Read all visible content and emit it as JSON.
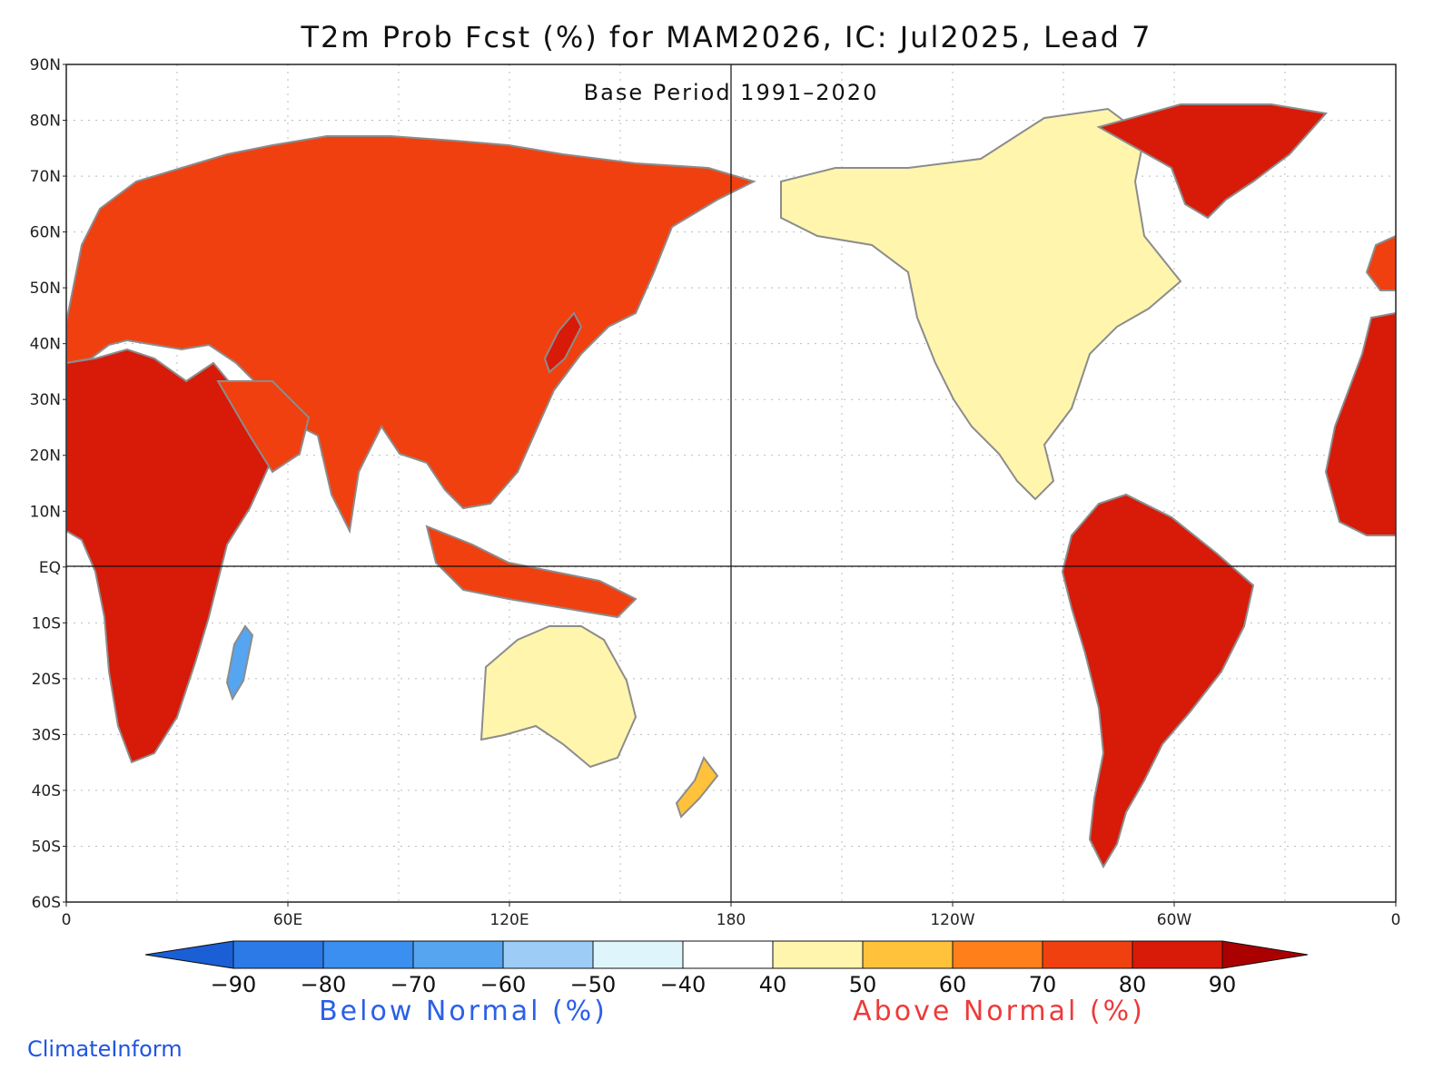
{
  "title": "T2m Prob Fcst (%) for MAM2026, IC: Jul2025, Lead 7",
  "subtitle": "Base Period 1991–2020",
  "credit": "ClimateInform",
  "lat_labels": [
    "90N",
    "80N",
    "70N",
    "60N",
    "50N",
    "40N",
    "30N",
    "20N",
    "10N",
    "EQ",
    "10S",
    "20S",
    "30S",
    "40S",
    "50S",
    "60S"
  ],
  "lon_labels": [
    "0",
    "60E",
    "120E",
    "180",
    "120W",
    "60W",
    "0"
  ],
  "colorbar": {
    "tick_labels": [
      "-90",
      "-80",
      "-70",
      "-60",
      "-50",
      "-40",
      "40",
      "50",
      "60",
      "70",
      "80",
      "90"
    ],
    "below_label": "Below Normal (%)",
    "above_label": "Above Normal (%)",
    "below_color": "#2a5fe8",
    "above_color": "#ee3a3a",
    "colors": [
      "#1a5fd6",
      "#2b7ae8",
      "#3a8ff0",
      "#55a5f0",
      "#9dcdf7",
      "#def6fb",
      "#ffffff",
      "#fff5ad",
      "#ffc23a",
      "#ff7f1a",
      "#f04010",
      "#d81a08",
      "#aa0000"
    ]
  },
  "palette": {
    "land_outline": "#8c8c8c",
    "frame": "#222222",
    "grid": "#bbbbbb"
  }
}
